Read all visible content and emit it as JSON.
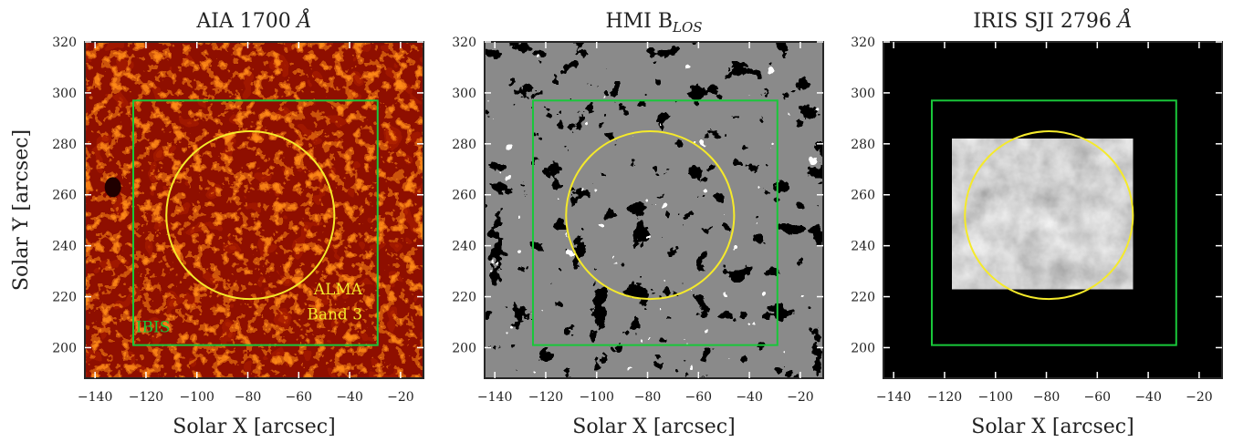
{
  "colors": {
    "fov_box": "#19c73a",
    "alma_circle": "#f5ea2a",
    "aia_background": "#8f0f00",
    "hmi_background": "#8a8a8a",
    "iris_background": "#000000"
  },
  "x_axis": {
    "label": "Solar X [arcsec]",
    "ticks": [
      "−140",
      "−120",
      "−100",
      "−80",
      "−60",
      "−40",
      "−20"
    ]
  },
  "y_axis": {
    "label": "Solar Y [arcsec]",
    "ticks": [
      "200",
      "220",
      "240",
      "260",
      "280",
      "300",
      "320"
    ]
  },
  "panels": [
    {
      "title_main": "AIA 1700 ",
      "title_unit": "Å",
      "title_sub": "",
      "colormap": "red-hot",
      "labels": {
        "ibis": "IBIS",
        "alma_line1": "ALMA",
        "alma_line2": "Band 3"
      }
    },
    {
      "title_main": "HMI B",
      "title_unit": "",
      "title_sub": "LOS",
      "colormap": "gray-saturated"
    },
    {
      "title_main": "IRIS SJI 2796 ",
      "title_unit": "Å",
      "title_sub": "",
      "colormap": "gray"
    }
  ],
  "overlays": {
    "ibis_box_x": [
      -125,
      -29
    ],
    "ibis_box_y": [
      201,
      297
    ],
    "alma_circle_center": [
      -79,
      252
    ],
    "alma_circle_radius": 33,
    "iris_fov_x": [
      -117,
      -46
    ],
    "iris_fov_y": [
      223,
      282
    ]
  },
  "extent": {
    "x": [
      -144,
      -11
    ],
    "y": [
      188,
      320
    ]
  }
}
